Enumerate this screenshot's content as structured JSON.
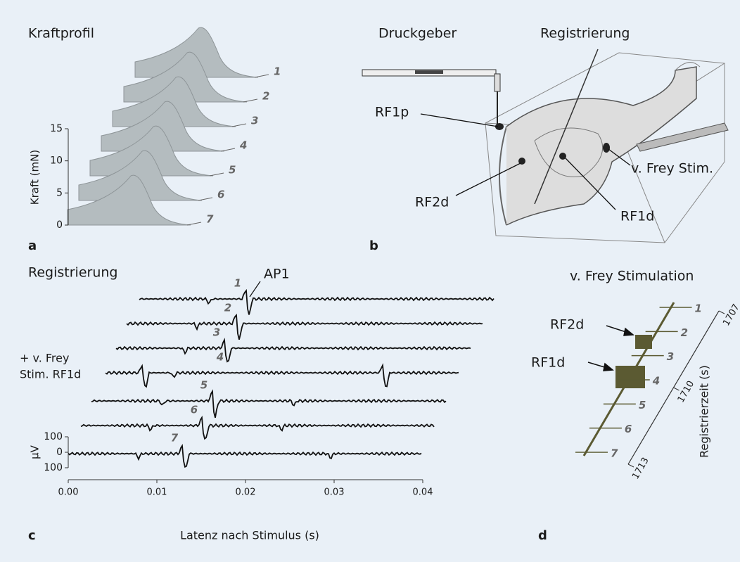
{
  "panels": {
    "a": {
      "letter": "a",
      "title": "Kraftprofil",
      "y_label": "Kraft (mN)",
      "ylim": [
        0,
        15
      ],
      "yticks": [
        0,
        5,
        10,
        15
      ],
      "curve_labels": [
        "1",
        "2",
        "3",
        "4",
        "5",
        "6",
        "7"
      ]
    },
    "b": {
      "letter": "b",
      "labels": {
        "pressure": "Druckgeber",
        "recording": "Registrierung",
        "rf1p": "RF1p",
        "rf2d": "RF2d",
        "stim": "v. Frey Stim.",
        "rf1d": "RF1d"
      }
    },
    "c": {
      "letter": "c",
      "title": "Registrierung",
      "x_label": "Latenz  nach Stimulus  (s)",
      "y_unit": "µV",
      "xlim": [
        0,
        0.04
      ],
      "xticks": [
        {
          "value": 0,
          "label": "0.00"
        },
        {
          "value": 0.01,
          "label": "0.01"
        },
        {
          "value": 0.02,
          "label": "0.02"
        },
        {
          "value": 0.03,
          "label": "0.03"
        },
        {
          "value": 0.04,
          "label": "0.04"
        }
      ],
      "ylim": [
        -100,
        100
      ],
      "yticks": [
        100,
        0,
        {
          "value": -100,
          "label": "100"
        }
      ],
      "trace_labels": [
        "1",
        "2",
        "3",
        "4",
        "5",
        "6",
        "7"
      ],
      "spike_label": "AP1",
      "stim_note": [
        "+ v. Frey",
        "Stim. RF1d"
      ]
    },
    "d": {
      "letter": "d",
      "title": "v. Frey Stimulation",
      "markers": [
        "RF2d",
        "RF1d"
      ],
      "trial_labels": [
        "1",
        "2",
        "3",
        "4",
        "5",
        "6",
        "7"
      ],
      "axis_label": "Registrierzeit  (s)",
      "tlim": [
        1707,
        1713
      ],
      "tticks": [
        1707,
        1710,
        1713
      ]
    }
  }
}
